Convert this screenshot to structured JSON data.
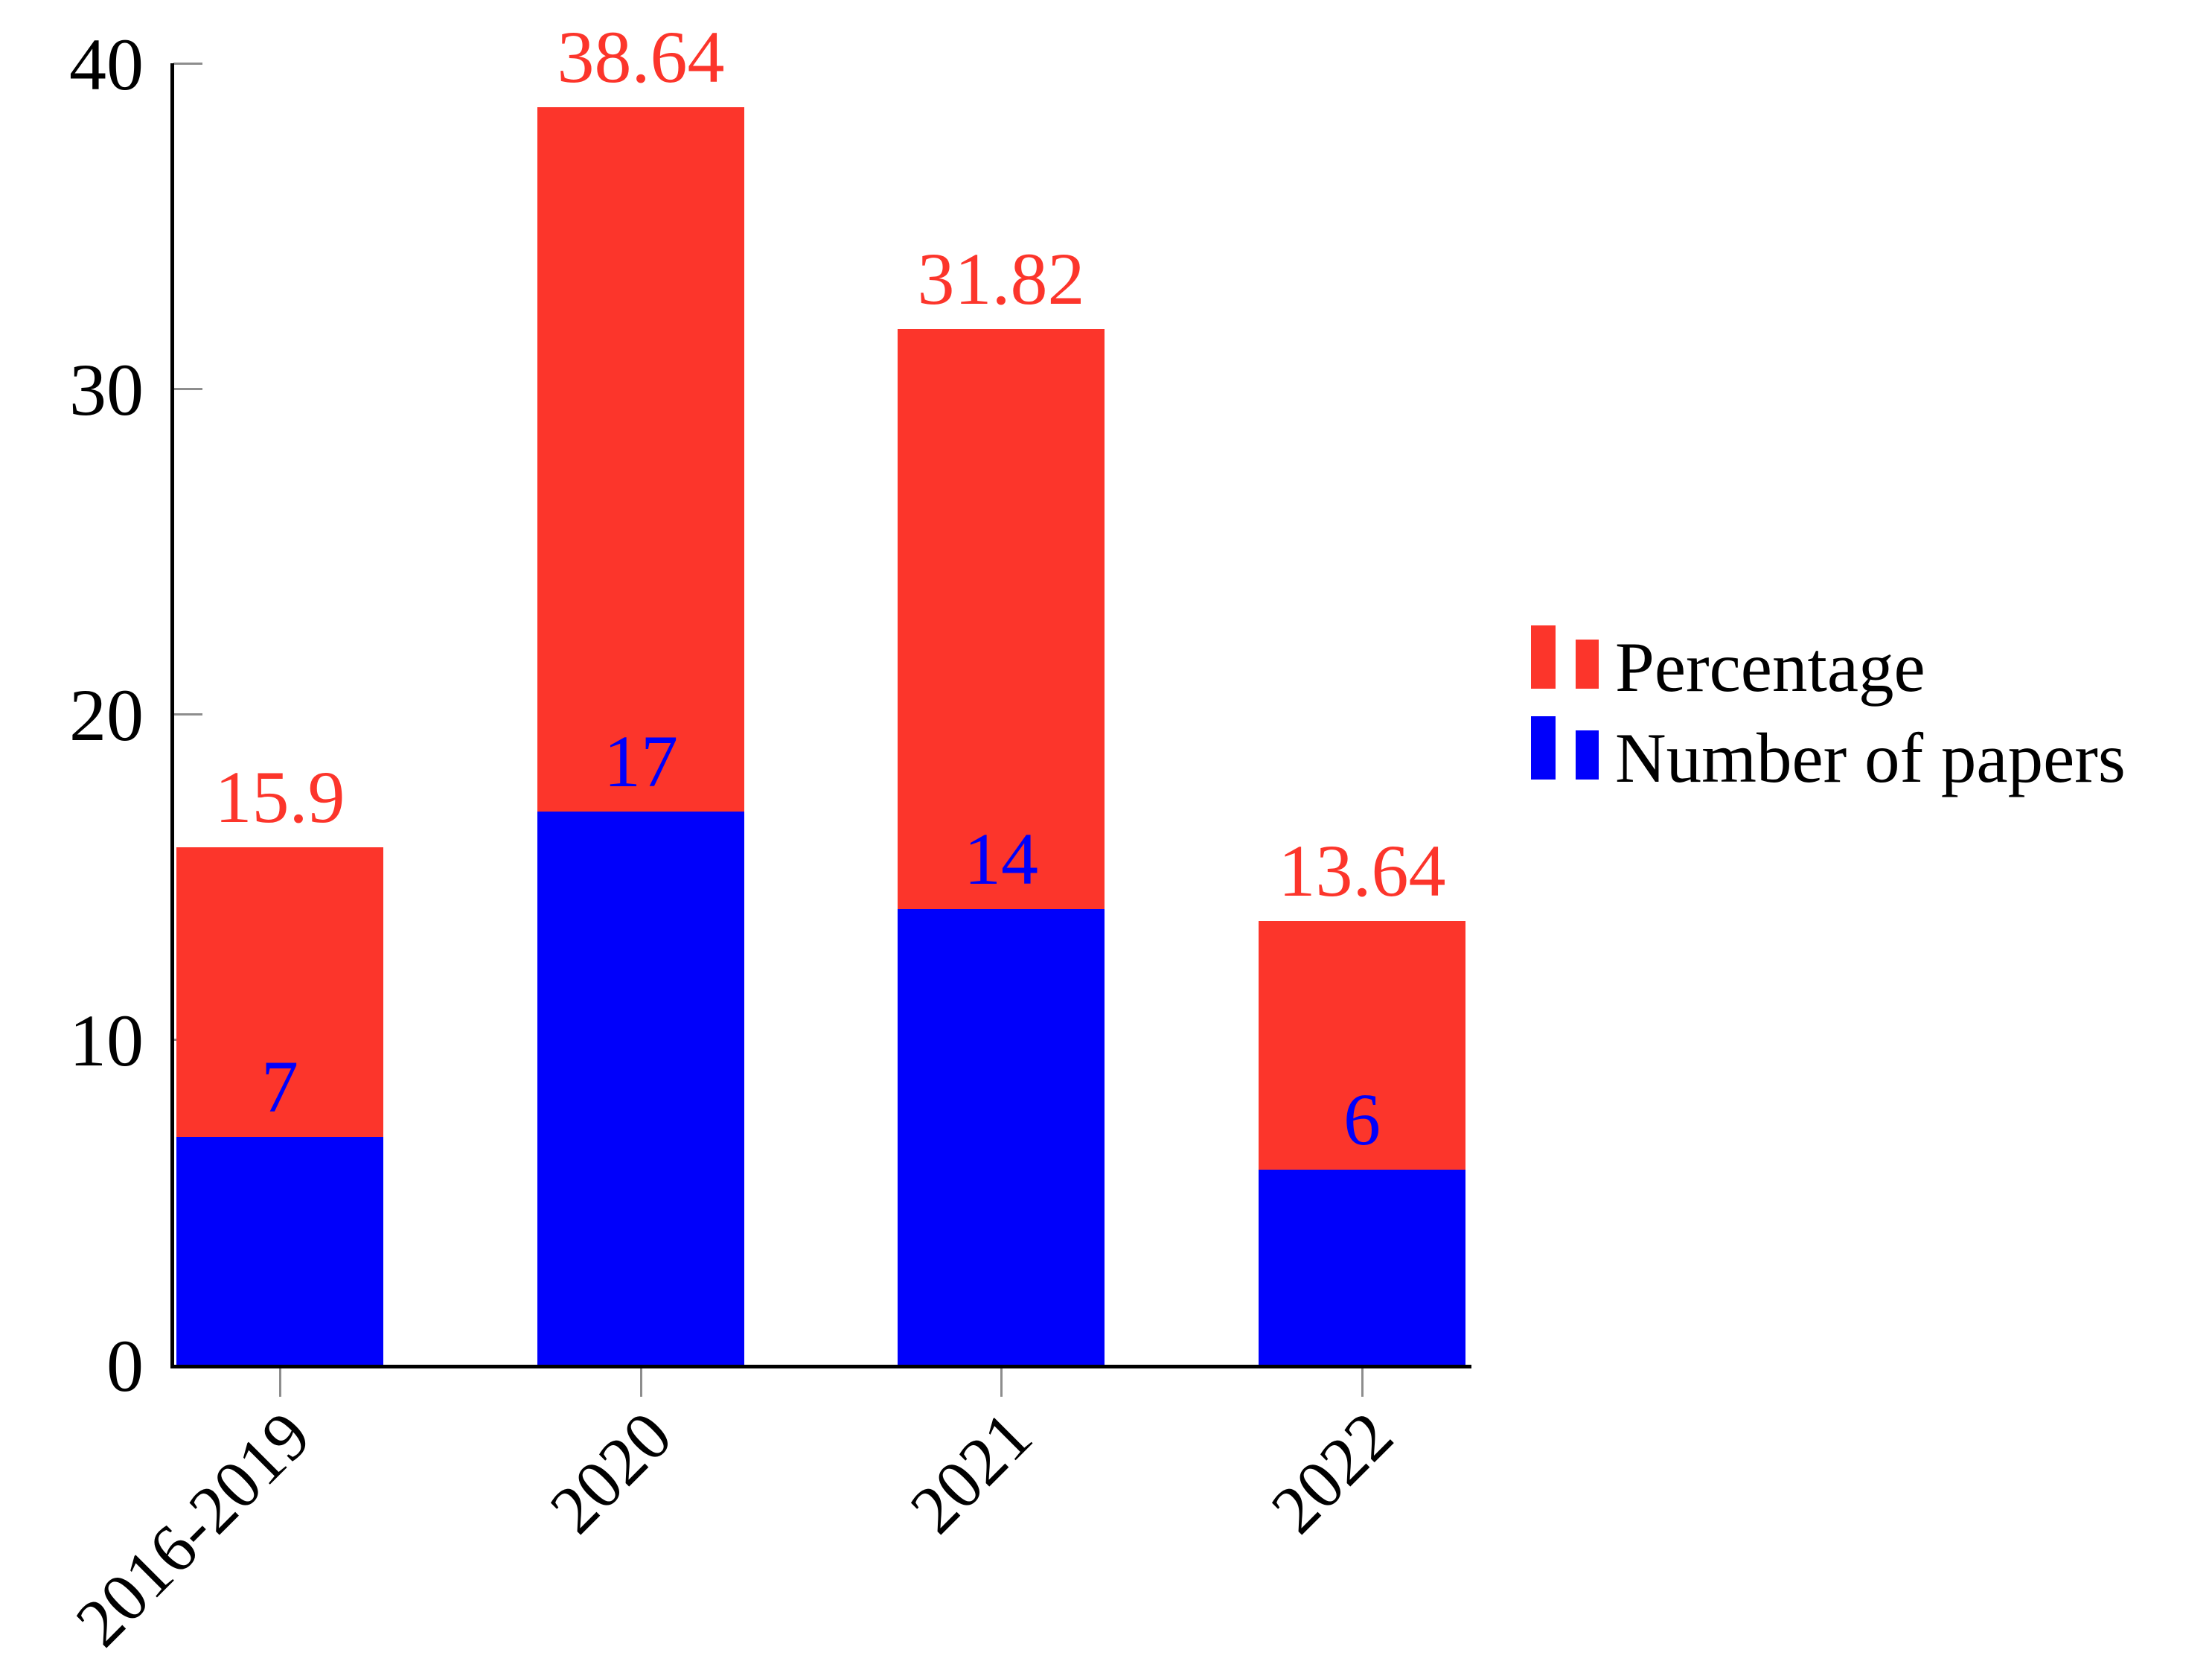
{
  "chart_data": {
    "type": "bar",
    "title": "",
    "xlabel": "",
    "ylabel": "",
    "categories": [
      "2016-2019",
      "2020",
      "2021",
      "2022"
    ],
    "series": [
      {
        "name": "Percentage",
        "color": "#fc352b",
        "values": [
          15.9,
          38.64,
          31.82,
          13.64
        ],
        "value_labels": [
          "15.9",
          "38.64",
          "31.82",
          "13.64"
        ]
      },
      {
        "name": "Number of papers",
        "color": "#0000fb",
        "values": [
          7,
          17,
          14,
          6
        ],
        "value_labels": [
          "7",
          "17",
          "14",
          "6"
        ]
      }
    ],
    "bar_style": "overlaid-front-to-back",
    "ylim": [
      0,
      40
    ],
    "yticks": [
      0,
      10,
      20,
      30,
      40
    ],
    "ytick_labels": [
      "0",
      "10",
      "20",
      "30",
      "40"
    ],
    "grid": false,
    "legend_position": "center-right",
    "axis_color": "#000000",
    "tick_color": "#8d8d8d"
  }
}
